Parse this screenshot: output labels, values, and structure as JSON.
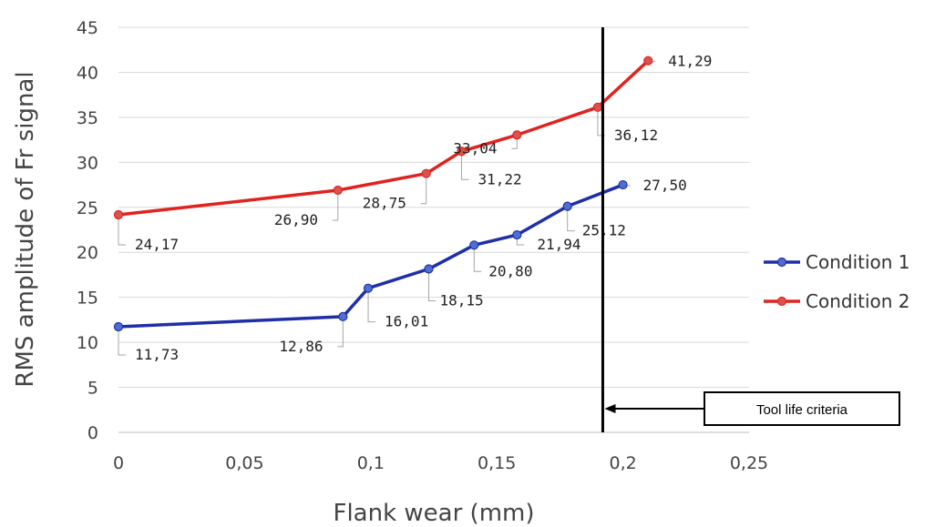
{
  "chart_data": {
    "type": "line",
    "xlabel": "Flank wear (mm)",
    "ylabel": "RMS  amplitude of Fr signal",
    "xlim": [
      0,
      0.25
    ],
    "ylim": [
      0,
      45
    ],
    "x_ticks": [
      {
        "value": 0,
        "label": "0"
      },
      {
        "value": 0.05,
        "label": "0,05"
      },
      {
        "value": 0.1,
        "label": "0,1"
      },
      {
        "value": 0.15,
        "label": "0,15"
      },
      {
        "value": 0.2,
        "label": "0,2"
      },
      {
        "value": 0.25,
        "label": "0,25"
      }
    ],
    "y_ticks": [
      {
        "value": 0,
        "label": "0"
      },
      {
        "value": 5,
        "label": "5"
      },
      {
        "value": 10,
        "label": "10"
      },
      {
        "value": 15,
        "label": "15"
      },
      {
        "value": 20,
        "label": "20"
      },
      {
        "value": 25,
        "label": "25"
      },
      {
        "value": 30,
        "label": "30"
      },
      {
        "value": 35,
        "label": "35"
      },
      {
        "value": 40,
        "label": "40"
      },
      {
        "value": 45,
        "label": "45"
      }
    ],
    "grid": "horizontal",
    "legend_position": "right",
    "series": [
      {
        "name": "Condition 1",
        "color": "#1f2fa8",
        "marker_color": "#4f6fd0",
        "x": [
          0,
          0.089,
          0.099,
          0.123,
          0.141,
          0.158,
          0.178,
          0.2
        ],
        "y": [
          11.73,
          12.86,
          16.01,
          18.15,
          20.8,
          21.94,
          25.12,
          27.5
        ],
        "labels": [
          "11,73",
          "12,86",
          "16,01",
          "18,15",
          "20,80",
          "21,94",
          "25,12",
          "27,50"
        ]
      },
      {
        "name": "Condition 2",
        "color": "#e0231f",
        "marker_color": "#d9534f",
        "x": [
          0,
          0.087,
          0.122,
          0.136,
          0.158,
          0.19,
          0.21
        ],
        "y": [
          24.17,
          26.9,
          28.75,
          31.22,
          33.04,
          36.12,
          41.29
        ],
        "labels": [
          "24,17",
          "26,90",
          "28,75",
          "31,22",
          "33,04",
          "36,12",
          "41,29"
        ]
      }
    ],
    "annotation": {
      "text": "Tool life criteria",
      "x": 0.192
    }
  }
}
